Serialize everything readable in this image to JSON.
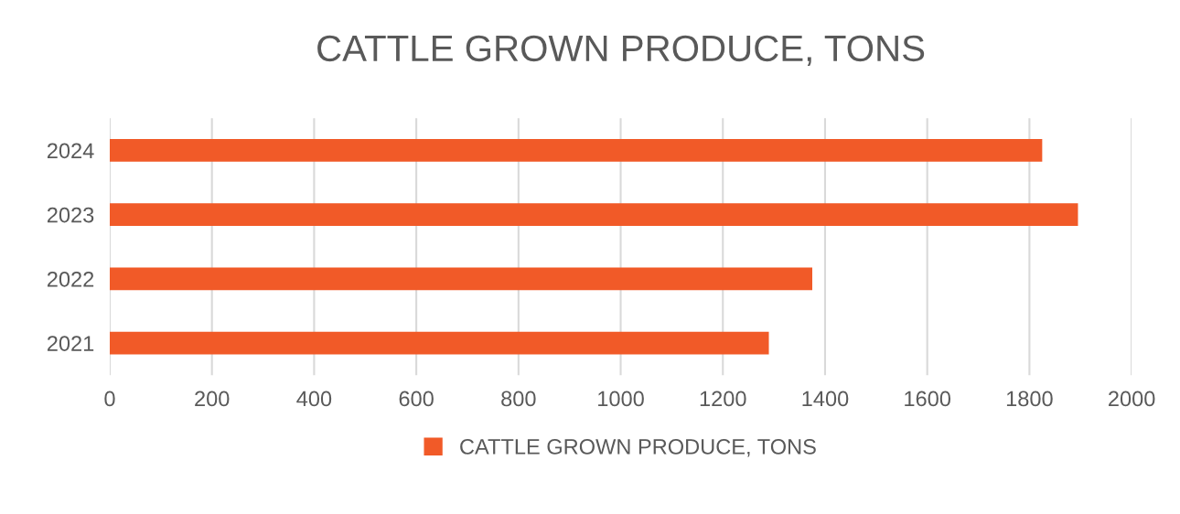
{
  "chart_data": {
    "type": "bar",
    "orientation": "horizontal",
    "title": "CATTLE GROWN PRODUCE, TONS",
    "categories": [
      "2024",
      "2023",
      "2022",
      "2021"
    ],
    "series": [
      {
        "name": "CATTLE GROWN PRODUCE, TONS",
        "color": "#f15a28",
        "values": [
          1825,
          1895,
          1375,
          1290
        ]
      }
    ],
    "xlim": [
      0,
      2000
    ],
    "xticks": [
      0,
      200,
      400,
      600,
      800,
      1000,
      1200,
      1400,
      1600,
      1800,
      2000
    ],
    "grid": "x",
    "legend": "bottom"
  }
}
